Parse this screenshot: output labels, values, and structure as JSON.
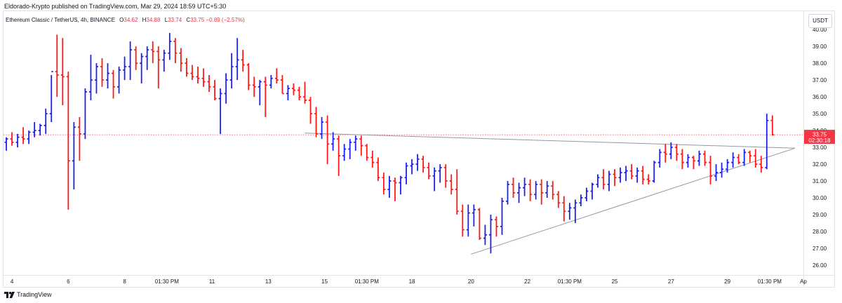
{
  "header": {
    "published": "Eldorado-Krypto published on TradingView.com, Mar 29, 2024 18:59 UTC+5:30"
  },
  "legend": {
    "symbol": "Ethereum Classic / TetherUS, 4h, BINANCE",
    "o_label": "O",
    "o_value": "34.62",
    "h_label": "H",
    "h_value": "34.88",
    "l_label": "L",
    "l_value": "33.74",
    "c_label": "C",
    "c_value": "33.75",
    "change": "−0.89 (−2.57%)"
  },
  "currency": "USDT",
  "price_label": {
    "price": "33.75",
    "countdown": "02:30:18"
  },
  "footer": {
    "brand": "TradingView"
  },
  "colors": {
    "up": "#1e22ee",
    "down": "#ff1a1a",
    "price_line": "#f23645",
    "trendline": "#9598a1",
    "axis_text": "#131722"
  },
  "chart_data": {
    "type": "ohlc",
    "y_axis": {
      "min": 25.5,
      "max": 40.3,
      "ticks": [
        "26.00",
        "27.00",
        "28.00",
        "29.00",
        "30.00",
        "31.00",
        "32.00",
        "33.00",
        "34.00",
        "35.00",
        "36.00",
        "37.00",
        "38.00",
        "39.00",
        "40.00"
      ]
    },
    "x_axis": {
      "range": [
        0,
        142
      ],
      "labels": [
        {
          "t": 1.5,
          "text": "4"
        },
        {
          "t": 11.5,
          "text": "6"
        },
        {
          "t": 21.5,
          "text": "8"
        },
        {
          "t": 29,
          "text": "01:30 PM"
        },
        {
          "t": 37,
          "text": "11"
        },
        {
          "t": 47,
          "text": "13"
        },
        {
          "t": 57,
          "text": "15"
        },
        {
          "t": 64.5,
          "text": "01:30 PM"
        },
        {
          "t": 72.5,
          "text": "18"
        },
        {
          "t": 83,
          "text": "20"
        },
        {
          "t": 93,
          "text": "22"
        },
        {
          "t": 100.5,
          "text": "01:30 PM"
        },
        {
          "t": 108.5,
          "text": "25"
        },
        {
          "t": 118.5,
          "text": "27"
        },
        {
          "t": 128.5,
          "text": "29"
        },
        {
          "t": 136,
          "text": "01:30 PM"
        },
        {
          "t": 142,
          "text": "Ap"
        }
      ]
    },
    "last_price": 33.75,
    "trendlines": [
      {
        "name": "descending-resistance",
        "points": [
          [
            53.5,
            33.85
          ],
          [
            140.5,
            32.95
          ]
        ]
      },
      {
        "name": "ascending-support",
        "points": [
          [
            83,
            26.65
          ],
          [
            140.5,
            32.95
          ]
        ]
      }
    ],
    "bars": [
      [
        33.3,
        33.6,
        32.8,
        33.5
      ],
      [
        33.5,
        33.9,
        33.1,
        33.3
      ],
      [
        33.3,
        33.8,
        33.0,
        33.6
      ],
      [
        33.6,
        34.2,
        33.2,
        33.5
      ],
      [
        33.5,
        34.0,
        33.2,
        33.9
      ],
      [
        33.9,
        34.5,
        33.6,
        34.0
      ],
      [
        34.0,
        34.4,
        33.7,
        34.3
      ],
      [
        34.3,
        35.3,
        33.8,
        35.0
      ],
      [
        35.0,
        37.3,
        34.5,
        37.5
      ],
      [
        37.5,
        39.7,
        36.0,
        37.3
      ],
      [
        37.3,
        39.5,
        35.5,
        37.2
      ],
      [
        37.2,
        37.5,
        29.3,
        32.2
      ],
      [
        32.2,
        34.5,
        30.5,
        34.2
      ],
      [
        34.2,
        34.8,
        32.2,
        33.8
      ],
      [
        33.8,
        36.5,
        33.5,
        36.3
      ],
      [
        36.3,
        38.5,
        35.8,
        37.0
      ],
      [
        37.0,
        38.0,
        36.2,
        37.8
      ],
      [
        37.8,
        38.3,
        36.6,
        37.0
      ],
      [
        37.0,
        38.0,
        36.5,
        37.4
      ],
      [
        37.4,
        37.6,
        35.9,
        36.6
      ],
      [
        36.6,
        37.8,
        36.2,
        37.6
      ],
      [
        37.6,
        38.4,
        37.0,
        37.8
      ],
      [
        37.8,
        39.3,
        37.0,
        38.8
      ],
      [
        38.8,
        39.0,
        37.6,
        38.0
      ],
      [
        38.0,
        38.6,
        36.8,
        38.4
      ],
      [
        38.4,
        39.0,
        37.6,
        38.8
      ],
      [
        38.8,
        39.3,
        38.0,
        38.7
      ],
      [
        38.7,
        39.0,
        36.5,
        38.2
      ],
      [
        38.2,
        38.8,
        37.5,
        38.6
      ],
      [
        38.6,
        39.8,
        38.2,
        39.3
      ],
      [
        39.3,
        39.5,
        38.0,
        38.6
      ],
      [
        38.6,
        38.9,
        37.5,
        38.0
      ],
      [
        38.0,
        38.3,
        37.2,
        37.4
      ],
      [
        37.4,
        37.9,
        37.0,
        37.2
      ],
      [
        37.2,
        37.8,
        36.8,
        37.1
      ],
      [
        37.1,
        37.7,
        36.6,
        36.9
      ],
      [
        36.9,
        37.3,
        36.3,
        36.6
      ],
      [
        36.6,
        37.0,
        35.8,
        35.9
      ],
      [
        35.9,
        36.5,
        33.8,
        36.2
      ],
      [
        36.2,
        37.4,
        35.6,
        37.0
      ],
      [
        37.0,
        38.6,
        36.5,
        37.8
      ],
      [
        37.8,
        39.5,
        37.0,
        38.2
      ],
      [
        38.2,
        38.8,
        37.5,
        37.9
      ],
      [
        37.9,
        38.0,
        36.4,
        36.7
      ],
      [
        36.7,
        37.2,
        36.0,
        36.6
      ],
      [
        36.6,
        37.0,
        35.5,
        36.9
      ],
      [
        36.9,
        37.2,
        34.8,
        36.7
      ],
      [
        36.7,
        37.3,
        36.5,
        37.1
      ],
      [
        37.1,
        37.7,
        36.8,
        37.0
      ],
      [
        37.0,
        37.3,
        36.2,
        36.2
      ],
      [
        36.2,
        36.7,
        35.8,
        36.5
      ],
      [
        36.5,
        36.8,
        36.1,
        36.4
      ],
      [
        36.4,
        36.6,
        35.8,
        36.0
      ],
      [
        36.0,
        36.9,
        35.6,
        35.8
      ],
      [
        35.8,
        36.0,
        34.4,
        35.0
      ],
      [
        35.0,
        35.4,
        33.6,
        33.8
      ],
      [
        33.8,
        34.8,
        33.5,
        34.5
      ],
      [
        34.5,
        34.9,
        32.0,
        33.2
      ],
      [
        33.2,
        33.9,
        32.8,
        33.5
      ],
      [
        33.5,
        33.7,
        31.3,
        32.5
      ],
      [
        32.5,
        33.2,
        32.2,
        32.9
      ],
      [
        32.9,
        33.5,
        32.3,
        33.3
      ],
      [
        33.3,
        33.7,
        32.8,
        33.5
      ],
      [
        33.5,
        33.7,
        32.5,
        33.1
      ],
      [
        33.1,
        33.2,
        32.2,
        32.4
      ],
      [
        32.4,
        32.8,
        31.8,
        32.1
      ],
      [
        32.1,
        32.4,
        31.0,
        31.2
      ],
      [
        31.2,
        31.5,
        30.2,
        30.5
      ],
      [
        30.5,
        31.3,
        30.0,
        31.0
      ],
      [
        31.0,
        31.2,
        29.8,
        30.9
      ],
      [
        30.9,
        31.3,
        30.2,
        31.2
      ],
      [
        31.2,
        32.1,
        30.8,
        31.9
      ],
      [
        31.9,
        32.3,
        31.4,
        32.0
      ],
      [
        32.0,
        32.6,
        31.6,
        32.3
      ],
      [
        32.3,
        32.5,
        31.5,
        31.8
      ],
      [
        31.8,
        32.1,
        31.1,
        31.3
      ],
      [
        31.3,
        31.8,
        30.4,
        31.6
      ],
      [
        31.6,
        32.0,
        30.9,
        31.8
      ],
      [
        31.8,
        32.0,
        30.6,
        31.0
      ],
      [
        31.0,
        31.4,
        30.2,
        30.5
      ],
      [
        30.5,
        31.7,
        29.0,
        29.2
      ],
      [
        29.2,
        29.6,
        27.7,
        28.1
      ],
      [
        28.1,
        29.6,
        27.7,
        29.1
      ],
      [
        29.1,
        29.6,
        28.3,
        29.3
      ],
      [
        29.3,
        29.4,
        27.5,
        27.6
      ],
      [
        27.6,
        28.4,
        27.2,
        27.8
      ],
      [
        27.8,
        29.0,
        26.7,
        28.7
      ],
      [
        28.7,
        28.9,
        27.7,
        28.3
      ],
      [
        28.3,
        30.0,
        27.8,
        29.8
      ],
      [
        29.8,
        31.0,
        29.6,
        30.8
      ],
      [
        30.8,
        31.2,
        30.0,
        30.3
      ],
      [
        30.3,
        30.9,
        29.7,
        30.6
      ],
      [
        30.6,
        31.2,
        30.1,
        30.8
      ],
      [
        30.8,
        31.1,
        29.8,
        30.2
      ],
      [
        30.2,
        31.0,
        29.9,
        30.8
      ],
      [
        30.8,
        31.1,
        29.6,
        30.3
      ],
      [
        30.3,
        31.0,
        30.0,
        30.7
      ],
      [
        30.7,
        31.0,
        29.9,
        30.2
      ],
      [
        30.2,
        30.4,
        29.4,
        29.7
      ],
      [
        29.7,
        30.1,
        28.6,
        29.2
      ],
      [
        29.2,
        29.7,
        28.7,
        29.4
      ],
      [
        29.4,
        29.9,
        28.5,
        29.7
      ],
      [
        29.7,
        30.2,
        29.5,
        30.0
      ],
      [
        30.0,
        30.6,
        29.8,
        30.4
      ],
      [
        30.4,
        30.9,
        29.9,
        30.8
      ],
      [
        30.8,
        31.4,
        30.6,
        31.2
      ],
      [
        31.2,
        31.7,
        30.5,
        30.8
      ],
      [
        30.8,
        31.6,
        30.4,
        31.4
      ],
      [
        31.4,
        31.7,
        30.7,
        31.2
      ],
      [
        31.2,
        31.8,
        30.9,
        31.5
      ],
      [
        31.5,
        31.9,
        31.0,
        31.6
      ],
      [
        31.6,
        32.0,
        31.1,
        31.3
      ],
      [
        31.3,
        31.8,
        30.9,
        31.6
      ],
      [
        31.6,
        31.9,
        30.8,
        31.1
      ],
      [
        31.1,
        31.4,
        30.8,
        31.0
      ],
      [
        31.0,
        32.2,
        30.9,
        32.1
      ],
      [
        32.1,
        32.9,
        31.8,
        32.7
      ],
      [
        32.7,
        33.2,
        32.1,
        32.6
      ],
      [
        32.6,
        33.3,
        32.3,
        33.0
      ],
      [
        33.0,
        33.2,
        32.2,
        32.6
      ],
      [
        32.6,
        32.9,
        31.7,
        32.1
      ],
      [
        32.1,
        32.6,
        31.8,
        32.4
      ],
      [
        32.4,
        32.5,
        31.7,
        32.2
      ],
      [
        32.2,
        32.8,
        31.9,
        32.6
      ],
      [
        32.6,
        32.8,
        31.9,
        32.1
      ],
      [
        32.1,
        32.5,
        30.8,
        31.3
      ],
      [
        31.3,
        32.0,
        31.0,
        31.5
      ],
      [
        31.5,
        32.1,
        31.2,
        31.7
      ],
      [
        31.7,
        32.3,
        31.5,
        32.1
      ],
      [
        32.1,
        32.7,
        31.8,
        32.4
      ],
      [
        32.4,
        32.6,
        32.0,
        32.1
      ],
      [
        32.1,
        32.9,
        31.9,
        32.7
      ],
      [
        32.7,
        32.8,
        32.1,
        32.5
      ],
      [
        32.5,
        32.9,
        31.8,
        32.0
      ],
      [
        32.0,
        32.5,
        31.5,
        31.8
      ],
      [
        31.8,
        35.0,
        31.7,
        34.6
      ],
      [
        34.6,
        34.9,
        33.7,
        33.75
      ]
    ]
  }
}
